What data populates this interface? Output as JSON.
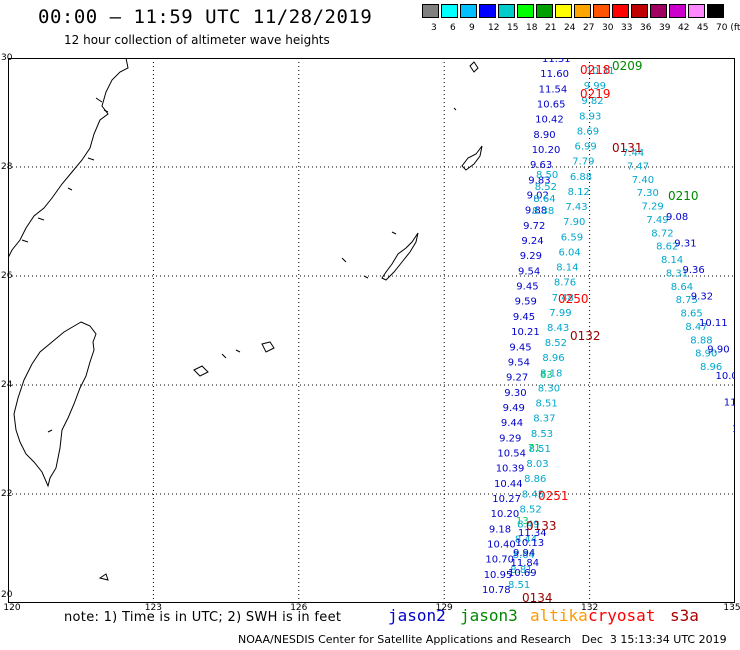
{
  "title": "00:00 — 11:59 UTC 11/28/2019",
  "subtitle": "12 hour collection of altimeter wave heights",
  "legend": {
    "colors": [
      "#808080",
      "#00ffff",
      "#00bfff",
      "#0000ff",
      "#00cccc",
      "#00ff00",
      "#00a000",
      "#ffff00",
      "#ffa500",
      "#ff5500",
      "#ff0000",
      "#c00000",
      "#a00060",
      "#cc00cc",
      "#ff88ff",
      "#000000"
    ],
    "labels": [
      "3",
      "6",
      "9",
      "12",
      "15",
      "18",
      "21",
      "24",
      "27",
      "30",
      "33",
      "36",
      "39",
      "42",
      "45",
      "70 (ft)"
    ]
  },
  "map": {
    "lon_ticks": [
      "120",
      "123",
      "126",
      "129",
      "132",
      "135"
    ],
    "lat_ticks": [
      "30",
      "28",
      "26",
      "24",
      "22",
      "20"
    ],
    "passes": [
      {
        "sat": "cryosat",
        "label": "0218",
        "color": "#ff0000"
      },
      {
        "sat": "jason3",
        "label": "0209",
        "color": "#008800"
      },
      {
        "sat": "cryosat",
        "label": "0219",
        "color": "#ff0000"
      },
      {
        "sat": "s3a",
        "label": "0131",
        "color": "#990000"
      },
      {
        "sat": "jason3",
        "label": "0210",
        "color": "#008800"
      },
      {
        "sat": "cryosat",
        "label": "0250",
        "color": "#ff0000"
      },
      {
        "sat": "s3a",
        "label": "0132",
        "color": "#990000"
      },
      {
        "sat": "cryosat",
        "label": "0251",
        "color": "#ff0000"
      },
      {
        "sat": "s3a",
        "label": "0133",
        "color": "#990000"
      },
      {
        "sat": "s3a",
        "label": "0134",
        "color": "#990000"
      }
    ],
    "track_blue": [
      "11.31",
      "11.60",
      "11.54",
      "10.65",
      "10.42",
      "8.90",
      "10.20",
      "9.63",
      "9.83",
      "9.02",
      "9.88",
      "9.72",
      "9.24",
      "9.29",
      "9.54",
      "9.45",
      "9.59",
      "9.45",
      "10.21",
      "9.45",
      "9.54",
      "9.27",
      "9.30",
      "9.49",
      "9.44",
      "9.29",
      "10.54",
      "10.39",
      "10.44",
      "10.27",
      "10.20",
      "9.18",
      "10.40",
      "10.70",
      "10.95",
      "10.78"
    ],
    "track_cyan": [
      "10.31",
      "9.99",
      "9.82",
      "8.93",
      "8.69",
      "6.99",
      "7.79",
      "6.88",
      "8.12",
      "7.43",
      "7.90",
      "6.59",
      "6.04",
      "8.14",
      "8.76",
      "7.48",
      "7.99",
      "8.43",
      "8.52",
      "8.96",
      "8.18",
      "8.30",
      "8.51",
      "8.37",
      "8.53",
      "8.51",
      "8.03",
      "8.86",
      "8.45",
      "8.52",
      "8.49",
      "8.44",
      "8.64",
      "8.81",
      "8.51"
    ],
    "track_blue2": [
      "11.34",
      "10.13",
      "9.94",
      "11.84",
      "10.69"
    ],
    "track_east_cyan": [
      "7.44",
      "7.47",
      "7.40",
      "7.30",
      "7.29",
      "7.49",
      "8.72",
      "8.62",
      "8.14",
      "8.31",
      "8.64",
      "8.75",
      "8.65",
      "8.47",
      "8.88",
      "8.90",
      "8.96"
    ],
    "track_east_blue": [
      "9.08",
      "9.31",
      "9.36",
      "9.32",
      "10.11",
      "9.90",
      "10.0",
      "11.",
      "10"
    ],
    "track_west_cyan": [
      "8.50",
      "8.52",
      "8.64",
      "8.38"
    ],
    "track_jason3_pts": [
      "13",
      "71",
      "63"
    ]
  },
  "note": "note: 1) Time is in UTC; 2) SWH is in feet",
  "satellites": [
    {
      "name": "jason2",
      "color": "#0000cc"
    },
    {
      "name": "jason3",
      "color": "#008800"
    },
    {
      "name": "altika",
      "color": "#ff9900"
    },
    {
      "name": "cryosat",
      "color": "#ff0000"
    },
    {
      "name": "s3a",
      "color": "#aa0000"
    }
  ],
  "credit": "NOAA/NESDIS Center for Satellite Applications and Research   Dec  3 15:13:34 UTC 2019"
}
